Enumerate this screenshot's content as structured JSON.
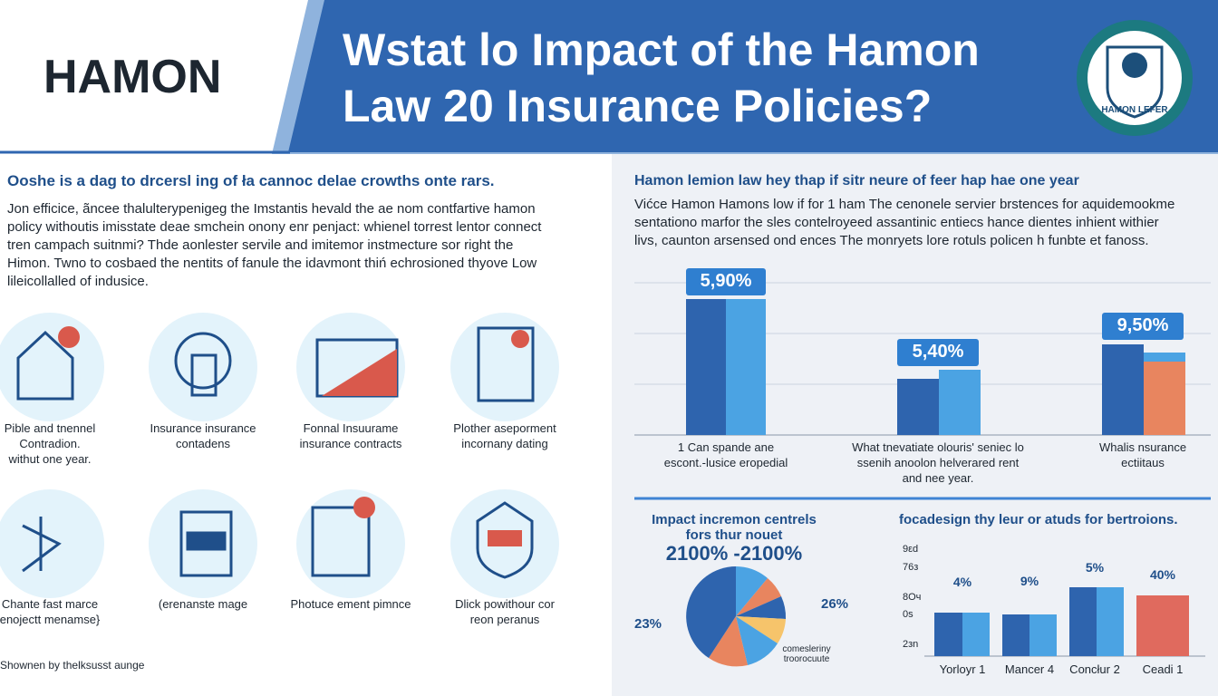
{
  "header": {
    "brand": "HAMON",
    "title_lines": [
      "Wstat lo Impact of the Hamon",
      "Law 20 Insurance Policies?"
    ],
    "logo_text": "HAMON LEFER"
  },
  "left": {
    "heading": "Ooshe is a dag to drcersl ing of ła cannoc delae crowths onte rars.",
    "paragraph": [
      "Jon efficice, ãncee thalulterypenigeg the Imstantis hevald the ae nom contfartive hamon",
      "policy withoutis imisstate deae smchein onony enr penjact: whienel torrest lentor connect",
      "tren campach suitnmi? Thde aonlester servile and imitemor instmecture sor right the",
      "Himon. Twno to cosbaed the nentits of fanule the idavmont thiń echrosioned thyove Low",
      "lileicollalled of indusice."
    ],
    "icons": [
      [
        "Pible and tnennel",
        "Contradion.",
        "withut one year."
      ],
      [
        "Insurance insurance",
        "contadens"
      ],
      [
        "Fonnal Insuurame",
        "insurance contracts"
      ],
      [
        "Plother aseporment",
        "incornany dating"
      ],
      [
        "Chante fast marce",
        "enojectt menamse}"
      ],
      [
        "(erenanste mage"
      ],
      [
        "Photuce ement pimnce"
      ],
      [
        "Dlick powithour cor",
        "reon peranus"
      ]
    ],
    "footer": "Shownen by thelksusst aunge"
  },
  "right": {
    "heading": "Hamon lemion law hey thap if sitr neure of feer hap hae one year",
    "paragraph": [
      "Vićce Hamon Hamons low if for 1 ham The cenonele servier brstences for aquidemookme",
      "sentationo marfor the sles contelroyeed assantinic entiecs hance dientes inhient withier",
      "livs, caunton arsensed ond ences The monryets lore rotuls policen h funbte et fanoss."
    ],
    "top_chart": {
      "value_labels": [
        "5,90%",
        "5,40%",
        "9,50%"
      ],
      "categories": [
        [
          "1 Can spande ane",
          "escont.-lusice eropedial"
        ],
        [
          "What tnevatiate olouris' seniec lo",
          "ssenih anoolon helverared rent",
          "and nee year."
        ],
        [
          "Whalis nsurance",
          "ectiitaus"
        ]
      ]
    },
    "pie": {
      "title_lines": [
        "Impact incremon centrels",
        "fors thur nouet"
      ],
      "big": "2100% -2100%",
      "labels": [
        "26%",
        "23%"
      ],
      "note_lines": [
        "comesleriny",
        "troorocuute"
      ]
    },
    "bottom_chart": {
      "title": "focadesign thy leur or atuds for bertroions.",
      "axis_labels": [
        "9εd",
        "76з",
        "8Оч",
        "0s",
        "2зn"
      ],
      "value_labels": [
        "4%",
        "9%",
        "5%",
        "40%"
      ],
      "categories": [
        "Yorloyr 1",
        "Mancer 4",
        "Concłur 2",
        "Ceadi 1"
      ]
    }
  }
}
